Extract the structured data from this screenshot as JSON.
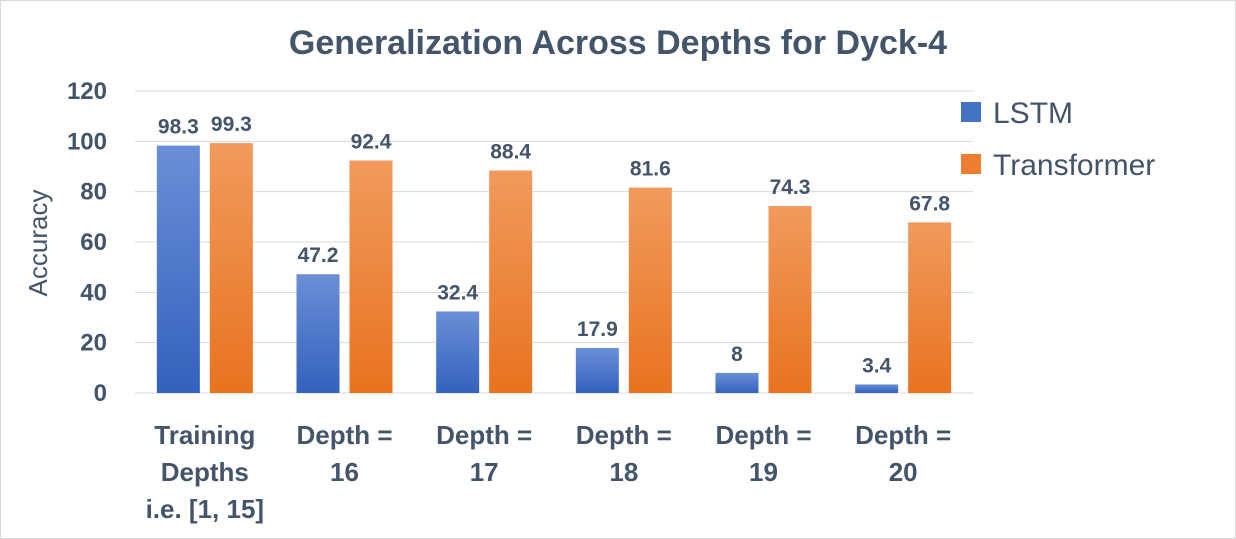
{
  "chart_data": {
    "type": "bar",
    "title": "Generalization Across Depths for Dyck-4",
    "xlabel": "",
    "ylabel": "Accuracy",
    "ylim": [
      0,
      120
    ],
    "yticks": [
      0,
      20,
      40,
      60,
      80,
      100,
      120
    ],
    "grid": true,
    "legend_position": "right",
    "categories": [
      [
        "Training",
        "Depths",
        "i.e. [1, 15]"
      ],
      [
        "Depth =",
        "16"
      ],
      [
        "Depth =",
        "17"
      ],
      [
        "Depth =",
        "18"
      ],
      [
        "Depth =",
        "19"
      ],
      [
        "Depth =",
        "20"
      ]
    ],
    "series": [
      {
        "name": "LSTM",
        "color": "#4472c4",
        "values": [
          98.3,
          47.2,
          32.4,
          17.9,
          8,
          3.4
        ],
        "labels": [
          "98.3",
          "47.2",
          "32.4",
          "17.9",
          "8",
          "3.4"
        ]
      },
      {
        "name": "Transformer",
        "color": "#ed7d31",
        "values": [
          99.3,
          92.4,
          88.4,
          81.6,
          74.3,
          67.8
        ],
        "labels": [
          "99.3",
          "92.4",
          "88.4",
          "81.6",
          "74.3",
          "67.8"
        ]
      }
    ]
  }
}
